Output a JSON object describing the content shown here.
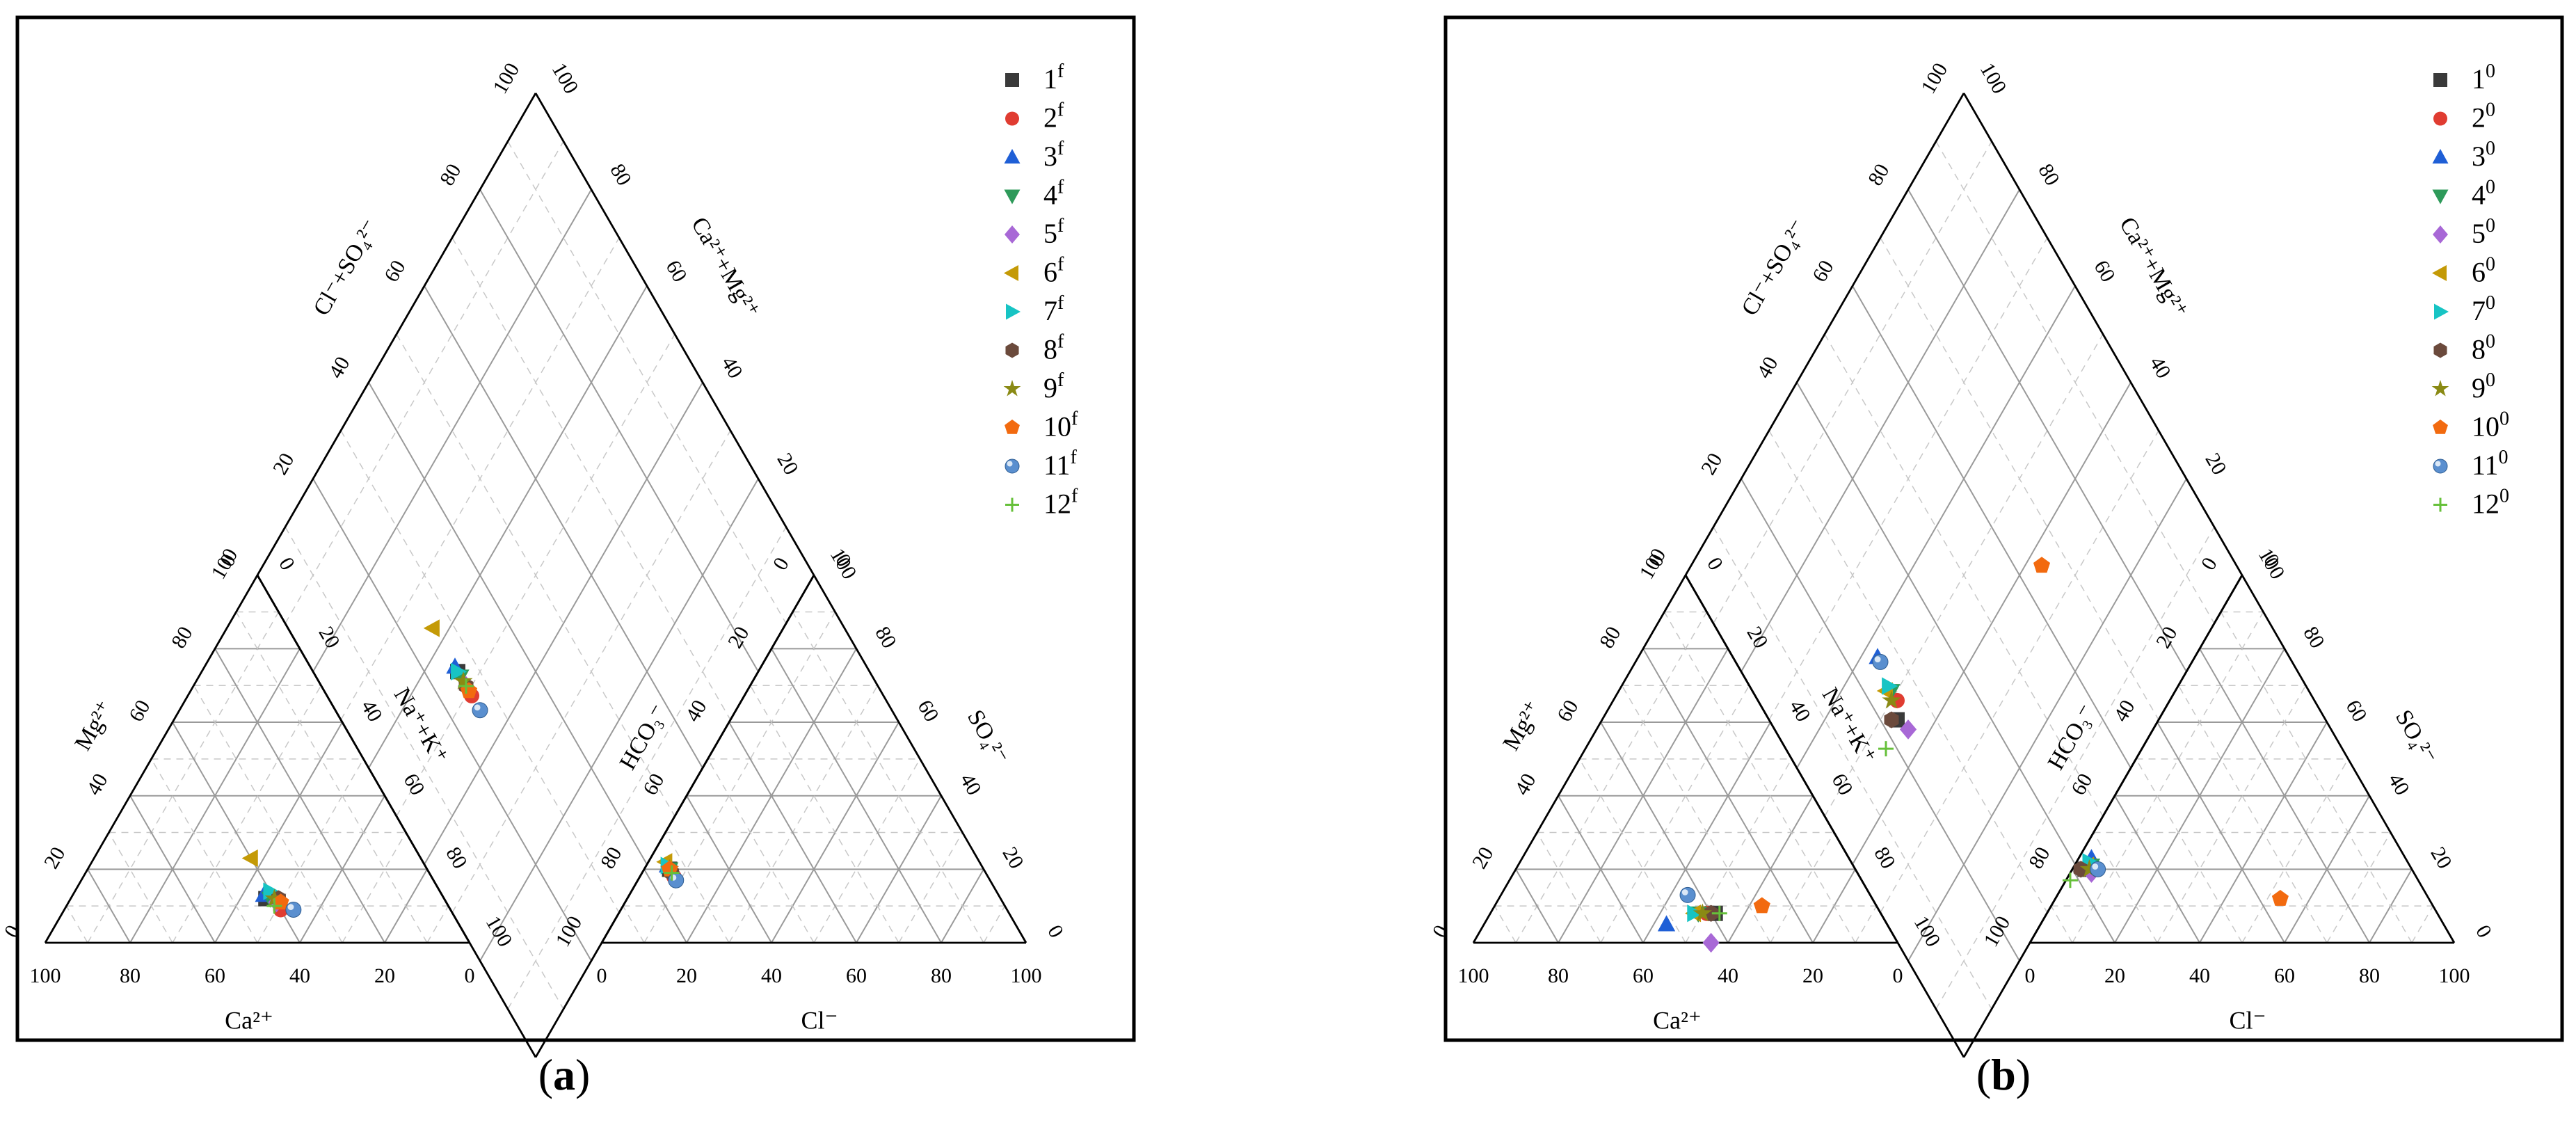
{
  "panels": [
    {
      "id": "a",
      "caption_letter": "a",
      "labels": {
        "cation_bottom": "Ca²⁺",
        "cation_left": "Mg²⁺",
        "cation_right": "Na⁺+K⁺",
        "anion_bottom": "Cl⁻",
        "anion_left": "HCO₃⁻",
        "anion_right": "SO₄²⁻",
        "diamond_left": "Cl⁻+SO₄²⁻",
        "diamond_right": "Ca²⁺+Mg²⁺"
      },
      "ticks": [
        "0",
        "20",
        "40",
        "60",
        "80",
        "100"
      ],
      "legend_superscript": "f"
    },
    {
      "id": "b",
      "caption_letter": "b",
      "labels": {
        "cation_bottom": "Ca²⁺",
        "cation_left": "Mg²⁺",
        "cation_right": "Na⁺+K⁺",
        "anion_bottom": "Cl⁻",
        "anion_left": "HCO₃⁻",
        "anion_right": "SO₄²⁻",
        "diamond_left": "Cl⁻+SO₄²⁻",
        "diamond_right": "Ca²⁺+Mg²⁺"
      },
      "ticks": [
        "0",
        "20",
        "40",
        "60",
        "80",
        "100"
      ],
      "legend_superscript": "0"
    }
  ],
  "chart_data": [
    {
      "type": "scatter",
      "subtype": "piper",
      "title": "(a)",
      "grid": true,
      "legend_position": "top-right",
      "series": [
        {
          "name": "1",
          "marker": "square",
          "color": "#3a3a3a",
          "cation": {
            "ca": 42,
            "mg": 12,
            "nak": 46
          },
          "anion": {
            "cl": 6,
            "so4": 20,
            "hco3": 74
          }
        },
        {
          "name": "2",
          "marker": "circle",
          "color": "#e03c31",
          "cation": {
            "ca": 40,
            "mg": 9,
            "nak": 51
          },
          "anion": {
            "cl": 8,
            "so4": 18,
            "hco3": 74
          }
        },
        {
          "name": "3",
          "marker": "triangle",
          "color": "#1f5fd6",
          "cation": {
            "ca": 42,
            "mg": 13,
            "nak": 45
          },
          "anion": {
            "cl": 5,
            "so4": 21,
            "hco3": 74
          }
        },
        {
          "name": "4",
          "marker": "tri-down",
          "color": "#2e9a5a",
          "cation": {
            "ca": 41,
            "mg": 12,
            "nak": 47
          },
          "anion": {
            "cl": 6,
            "so4": 20,
            "hco3": 74
          }
        },
        {
          "name": "5",
          "marker": "diamond",
          "color": "#a868d6",
          "cation": {
            "ca": 40,
            "mg": 11,
            "nak": 49
          },
          "anion": {
            "cl": 7,
            "so4": 19,
            "hco3": 74
          }
        },
        {
          "name": "6",
          "marker": "tri-left",
          "color": "#c49a06",
          "cation": {
            "ca": 40,
            "mg": 23,
            "nak": 37
          },
          "anion": {
            "cl": 4,
            "so4": 22,
            "hco3": 74
          }
        },
        {
          "name": "7",
          "marker": "tri-right",
          "color": "#17c4c4",
          "cation": {
            "ca": 40,
            "mg": 14,
            "nak": 46
          },
          "anion": {
            "cl": 5,
            "so4": 21,
            "hco3": 74
          }
        },
        {
          "name": "8",
          "marker": "hexagon",
          "color": "#6b4a3c",
          "cation": {
            "ca": 39,
            "mg": 12,
            "nak": 49
          },
          "anion": {
            "cl": 7,
            "so4": 19,
            "hco3": 74
          }
        },
        {
          "name": "9",
          "marker": "star",
          "color": "#8a8a14",
          "cation": {
            "ca": 40,
            "mg": 12,
            "nak": 48
          },
          "anion": {
            "cl": 6,
            "so4": 20,
            "hco3": 74
          }
        },
        {
          "name": "10",
          "marker": "pentagon",
          "color": "#f26a0f",
          "cation": {
            "ca": 39,
            "mg": 11,
            "nak": 50
          },
          "anion": {
            "cl": 6,
            "so4": 20,
            "hco3": 74
          }
        },
        {
          "name": "11",
          "marker": "sphere",
          "color": "#5a8fcf",
          "cation": {
            "ca": 37,
            "mg": 9,
            "nak": 54
          },
          "anion": {
            "cl": 9,
            "so4": 17,
            "hco3": 74
          }
        },
        {
          "name": "12",
          "marker": "plus",
          "color": "#66c03a",
          "cation": {
            "ca": 41,
            "mg": 10,
            "nak": 49
          },
          "anion": {
            "cl": 7,
            "so4": 19,
            "hco3": 74
          }
        }
      ]
    },
    {
      "type": "scatter",
      "subtype": "piper",
      "title": "(b)",
      "grid": true,
      "legend_position": "top-right",
      "series": [
        {
          "name": "1",
          "marker": "square",
          "color": "#3a3a3a",
          "cation": {
            "ca": 39,
            "mg": 8,
            "nak": 53
          },
          "anion": {
            "cl": 3,
            "so4": 20,
            "hco3": 77
          }
        },
        {
          "name": "2",
          "marker": "circle",
          "color": "#e03c31",
          "cation": {
            "ca": 41,
            "mg": 8,
            "nak": 51
          },
          "anion": {
            "cl": 4,
            "so4": 21,
            "hco3": 75
          }
        },
        {
          "name": "3",
          "marker": "triangle",
          "color": "#1f5fd6",
          "cation": {
            "ca": 52,
            "mg": 5,
            "nak": 43
          },
          "anion": {
            "cl": 3,
            "so4": 23,
            "hco3": 74
          }
        },
        {
          "name": "4",
          "marker": "tri-down",
          "color": "#2e9a5a",
          "cation": {
            "ca": 43,
            "mg": 8,
            "nak": 49
          },
          "anion": {
            "cl": 4,
            "so4": 21,
            "hco3": 75
          }
        },
        {
          "name": "5",
          "marker": "diamond",
          "color": "#a868d6",
          "cation": {
            "ca": 44,
            "mg": 0,
            "nak": 56
          },
          "anion": {
            "cl": 5,
            "so4": 19,
            "hco3": 76
          }
        },
        {
          "name": "6",
          "marker": "tri-left",
          "color": "#c49a06",
          "cation": {
            "ca": 44,
            "mg": 8,
            "nak": 48
          },
          "anion": {
            "cl": 3,
            "so4": 21,
            "hco3": 76
          }
        },
        {
          "name": "7",
          "marker": "tri-right",
          "color": "#17c4c4",
          "cation": {
            "ca": 44,
            "mg": 8,
            "nak": 48
          },
          "anion": {
            "cl": 3,
            "so4": 22,
            "hco3": 75
          }
        },
        {
          "name": "8",
          "marker": "hexagon",
          "color": "#6b4a3c",
          "cation": {
            "ca": 40,
            "mg": 8,
            "nak": 52
          },
          "anion": {
            "cl": 2,
            "so4": 20,
            "hco3": 78
          }
        },
        {
          "name": "9",
          "marker": "star",
          "color": "#8a8a14",
          "cation": {
            "ca": 42,
            "mg": 8,
            "nak": 50
          },
          "anion": {
            "cl": 4,
            "so4": 20,
            "hco3": 76
          }
        },
        {
          "name": "10",
          "marker": "pentagon",
          "color": "#f26a0f",
          "cation": {
            "ca": 27,
            "mg": 10,
            "nak": 63
          },
          "anion": {
            "cl": 53,
            "so4": 12,
            "hco3": 35
          }
        },
        {
          "name": "11",
          "marker": "sphere",
          "color": "#5a8fcf",
          "cation": {
            "ca": 43,
            "mg": 13,
            "nak": 44
          },
          "anion": {
            "cl": 6,
            "so4": 20,
            "hco3": 74
          }
        },
        {
          "name": "12",
          "marker": "plus",
          "color": "#66c03a",
          "cation": {
            "ca": 38,
            "mg": 8,
            "nak": 54
          },
          "anion": {
            "cl": 1,
            "so4": 17,
            "hco3": 82
          }
        }
      ]
    }
  ]
}
